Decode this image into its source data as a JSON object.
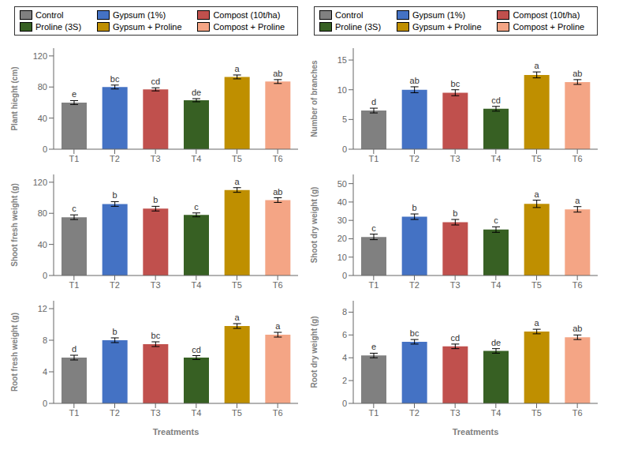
{
  "chart_data": [
    {
      "type": "bar",
      "categories": [
        "T1",
        "T2",
        "T3",
        "T4",
        "T5",
        "T6"
      ],
      "values": [
        60,
        80,
        77,
        63,
        93,
        87
      ],
      "errors": [
        2.5,
        2.5,
        2.0,
        2.0,
        2.5,
        2.5
      ],
      "letters": [
        "e",
        "bc",
        "cd",
        "de",
        "a",
        "ab"
      ],
      "colors": [
        "#808080",
        "#4472C4",
        "#C0504D",
        "#376023",
        "#BF8F00",
        "#F4A585"
      ],
      "ylabel": "Plant hieght (cm)",
      "ylim": [
        0,
        130
      ],
      "yticks": [
        0,
        40,
        80,
        120
      ],
      "grid": false
    },
    {
      "type": "bar",
      "categories": [
        "T1",
        "T2",
        "T3",
        "T4",
        "T5",
        "T6"
      ],
      "values": [
        6.5,
        10.0,
        9.5,
        6.8,
        12.5,
        11.3
      ],
      "errors": [
        0.4,
        0.5,
        0.5,
        0.4,
        0.5,
        0.4
      ],
      "letters": [
        "d",
        "ab",
        "bc",
        "cd",
        "a",
        "ab"
      ],
      "colors": [
        "#808080",
        "#4472C4",
        "#C0504D",
        "#376023",
        "#BF8F00",
        "#F4A585"
      ],
      "ylabel": "Number of branches",
      "ylim": [
        0,
        17
      ],
      "yticks": [
        0,
        5,
        10,
        15
      ],
      "grid": false
    },
    {
      "type": "bar",
      "categories": [
        "T1",
        "T2",
        "T3",
        "T4",
        "T5",
        "T6"
      ],
      "values": [
        75,
        92,
        86,
        78,
        110,
        97
      ],
      "errors": [
        3.0,
        3.0,
        3.0,
        2.5,
        3.0,
        3.0
      ],
      "letters": [
        "c",
        "b",
        "b",
        "c",
        "a",
        "ab"
      ],
      "colors": [
        "#808080",
        "#4472C4",
        "#C0504D",
        "#376023",
        "#BF8F00",
        "#F4A585"
      ],
      "ylabel": "Shoot fresh weight (g)",
      "ylim": [
        0,
        130
      ],
      "yticks": [
        0,
        40,
        80,
        120
      ],
      "grid": false
    },
    {
      "type": "bar",
      "categories": [
        "T1",
        "T2",
        "T3",
        "T4",
        "T5",
        "T6"
      ],
      "values": [
        21,
        32,
        29,
        25,
        39,
        36
      ],
      "errors": [
        1.5,
        1.5,
        1.5,
        1.5,
        2.0,
        1.5
      ],
      "letters": [
        "c",
        "b",
        "b",
        "c",
        "a",
        "a"
      ],
      "colors": [
        "#808080",
        "#4472C4",
        "#C0504D",
        "#376023",
        "#BF8F00",
        "#F4A585"
      ],
      "ylabel": "Shoot dry weight (g)",
      "ylim": [
        0,
        55
      ],
      "yticks": [
        0,
        10,
        20,
        30,
        40,
        50
      ],
      "grid": false
    },
    {
      "type": "bar",
      "categories": [
        "T1",
        "T2",
        "T3",
        "T4",
        "T5",
        "T6"
      ],
      "values": [
        5.8,
        8.0,
        7.5,
        5.8,
        9.8,
        8.7
      ],
      "errors": [
        0.3,
        0.3,
        0.3,
        0.25,
        0.3,
        0.3
      ],
      "letters": [
        "d",
        "b",
        "bc",
        "cd",
        "a",
        "a"
      ],
      "colors": [
        "#808080",
        "#4472C4",
        "#C0504D",
        "#376023",
        "#BF8F00",
        "#F4A585"
      ],
      "ylabel": "Root fresh weight (g)",
      "xlabel": "Treatments",
      "ylim": [
        0,
        13
      ],
      "yticks": [
        0,
        4,
        8,
        12
      ],
      "grid": false
    },
    {
      "type": "bar",
      "categories": [
        "T1",
        "T2",
        "T3",
        "T4",
        "T5",
        "T6"
      ],
      "values": [
        4.2,
        5.4,
        5.0,
        4.6,
        6.3,
        5.8
      ],
      "errors": [
        0.2,
        0.2,
        0.2,
        0.2,
        0.2,
        0.2
      ],
      "letters": [
        "e",
        "bc",
        "cd",
        "de",
        "a",
        "ab"
      ],
      "colors": [
        "#808080",
        "#4472C4",
        "#C0504D",
        "#376023",
        "#BF8F00",
        "#F4A585"
      ],
      "ylabel": "Root dry weight (g)",
      "xlabel": "Treatments",
      "ylim": [
        0,
        9
      ],
      "yticks": [
        0,
        2,
        4,
        6,
        8
      ],
      "grid": false
    }
  ],
  "legend_entries": [
    {
      "name": "Control",
      "color": "#808080"
    },
    {
      "name": "Gypsum (1%)",
      "color": "#4472C4"
    },
    {
      "name": "Compost (10t/ha)",
      "color": "#C0504D"
    },
    {
      "name": "Proline (3S)",
      "color": "#376023"
    },
    {
      "name": "Gypsum + Proline",
      "color": "#BF8F00"
    },
    {
      "name": "Compost + Proline",
      "color": "#F4A585"
    }
  ]
}
